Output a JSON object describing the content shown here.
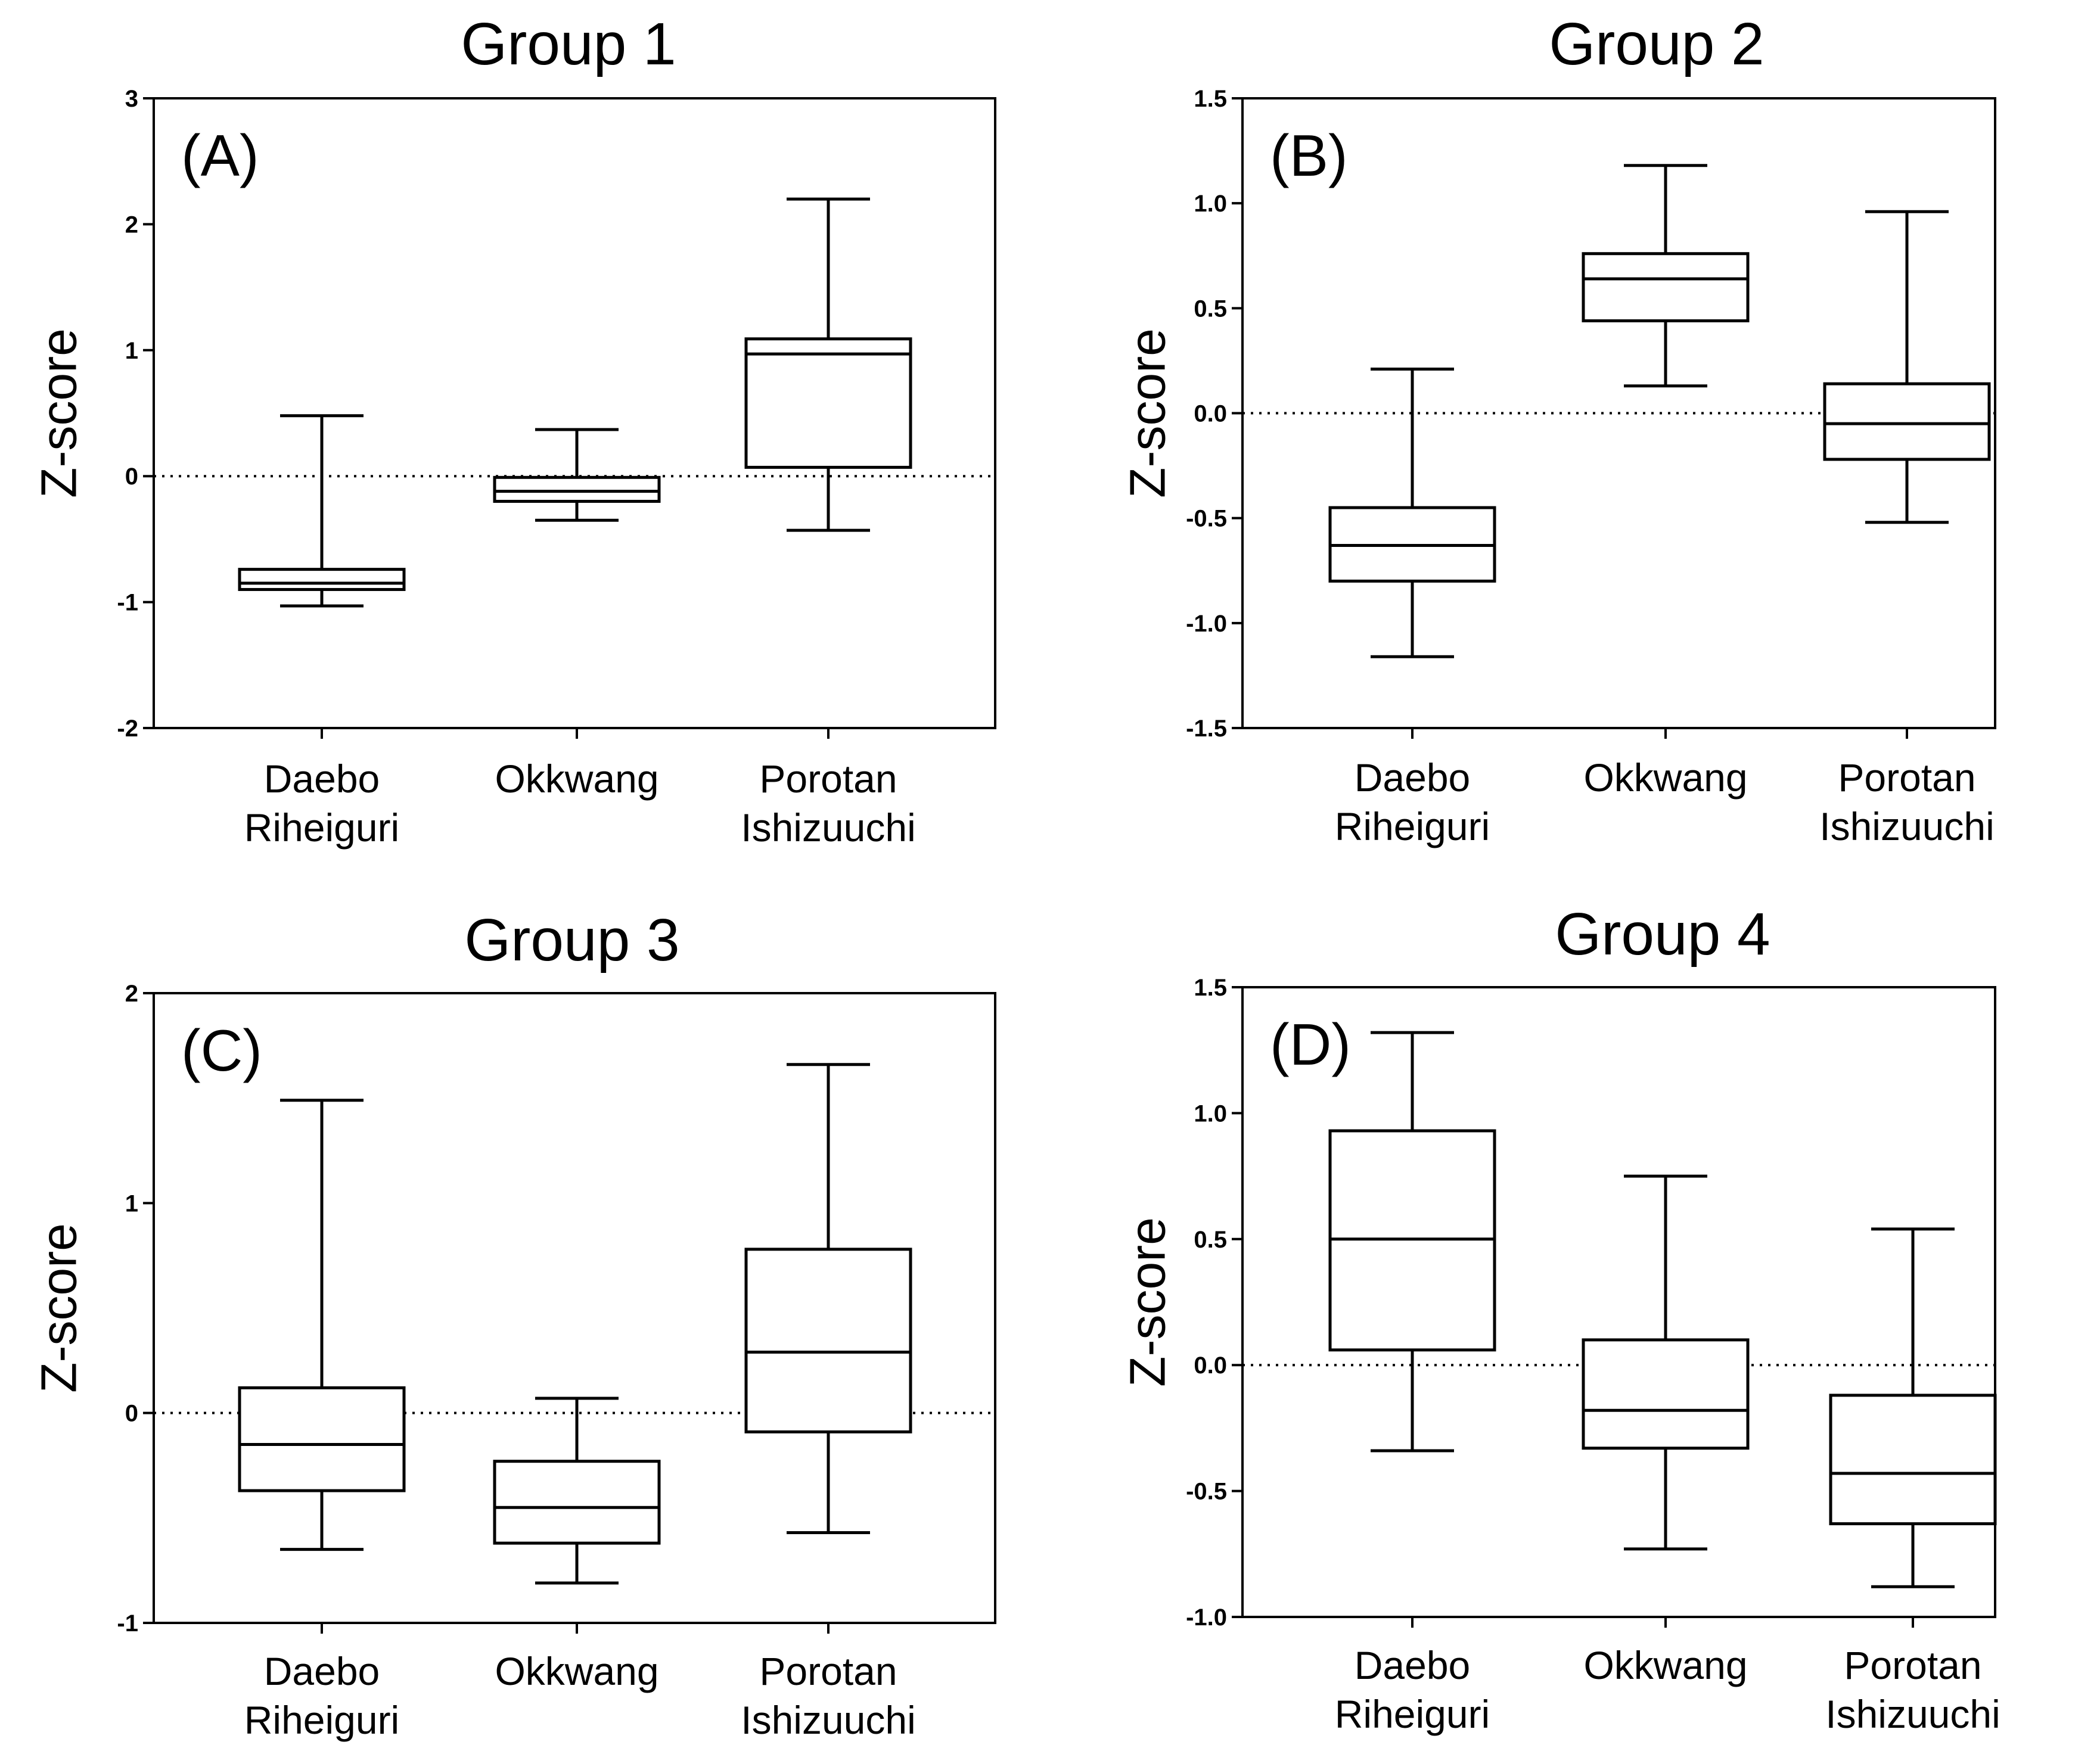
{
  "chart_data": [
    {
      "type": "box",
      "title": "Group 1",
      "panel_label": "(A)",
      "ylabel": "Z-score",
      "xlabel": "",
      "ylim": [
        -2,
        3
      ],
      "yticks": [
        -2,
        -1,
        0,
        1,
        2,
        3
      ],
      "ytick_labels": [
        "-2",
        "-1",
        "0",
        "1",
        "2",
        "3"
      ],
      "reference_line": 0,
      "categories": [
        [
          "Daebo",
          "Riheiguri"
        ],
        [
          "Okkwang"
        ],
        [
          "Porotan",
          "Ishizuuchi"
        ]
      ],
      "boxes": [
        {
          "min": -1.03,
          "q1": -0.9,
          "median": -0.85,
          "q3": -0.74,
          "max": 0.48
        },
        {
          "min": -0.35,
          "q1": -0.2,
          "median": -0.12,
          "q3": -0.01,
          "max": 0.37
        },
        {
          "min": -0.43,
          "q1": 0.07,
          "median": 0.97,
          "q3": 1.09,
          "max": 2.2
        }
      ]
    },
    {
      "type": "box",
      "title": "Group 2",
      "panel_label": "(B)",
      "ylabel": "Z-score",
      "xlabel": "",
      "ylim": [
        -1.5,
        1.5
      ],
      "yticks": [
        -1.5,
        -1.0,
        -0.5,
        0.0,
        0.5,
        1.0,
        1.5
      ],
      "ytick_labels": [
        "-1.5",
        "-1.0",
        "-0.5",
        "0.0",
        "0.5",
        "1.0",
        "1.5"
      ],
      "reference_line": 0,
      "categories": [
        [
          "Daebo",
          "Riheiguri"
        ],
        [
          "Okkwang"
        ],
        [
          "Porotan",
          "Ishizuuchi"
        ]
      ],
      "boxes": [
        {
          "min": -1.16,
          "q1": -0.8,
          "median": -0.63,
          "q3": -0.45,
          "max": 0.21
        },
        {
          "min": 0.13,
          "q1": 0.44,
          "median": 0.64,
          "q3": 0.76,
          "max": 1.18
        },
        {
          "min": -0.52,
          "q1": -0.22,
          "median": -0.05,
          "q3": 0.14,
          "max": 0.96
        }
      ]
    },
    {
      "type": "box",
      "title": "Group 3",
      "panel_label": "(C)",
      "ylabel": "Z-score",
      "xlabel": "",
      "ylim": [
        -1,
        2
      ],
      "yticks": [
        -1,
        0,
        1,
        2
      ],
      "ytick_labels": [
        "-1",
        "0",
        "1",
        "2"
      ],
      "reference_line": 0,
      "categories": [
        [
          "Daebo",
          "Riheiguri"
        ],
        [
          "Okkwang"
        ],
        [
          "Porotan",
          "Ishizuuchi"
        ]
      ],
      "boxes": [
        {
          "min": -0.65,
          "q1": -0.37,
          "median": -0.15,
          "q3": 0.12,
          "max": 1.49
        },
        {
          "min": -0.81,
          "q1": -0.62,
          "median": -0.45,
          "q3": -0.23,
          "max": 0.07
        },
        {
          "min": -0.57,
          "q1": -0.09,
          "median": 0.29,
          "q3": 0.78,
          "max": 1.66
        }
      ]
    },
    {
      "type": "box",
      "title": "Group 4",
      "panel_label": "(D)",
      "ylabel": "Z-score",
      "xlabel": "",
      "ylim": [
        -1.0,
        1.5
      ],
      "yticks": [
        -1.0,
        -0.5,
        0.0,
        0.5,
        1.0,
        1.5
      ],
      "ytick_labels": [
        "-1.0",
        "-0.5",
        "0.0",
        "0.5",
        "1.0",
        "1.5"
      ],
      "reference_line": 0,
      "categories": [
        [
          "Daebo",
          "Riheiguri"
        ],
        [
          "Okkwang"
        ],
        [
          "Porotan",
          "Ishizuuchi"
        ]
      ],
      "boxes": [
        {
          "min": -0.34,
          "q1": 0.06,
          "median": 0.5,
          "q3": 0.93,
          "max": 1.32
        },
        {
          "min": -0.73,
          "q1": -0.33,
          "median": -0.18,
          "q3": 0.1,
          "max": 0.75
        },
        {
          "min": -0.88,
          "q1": -0.63,
          "median": -0.43,
          "q3": -0.12,
          "max": 0.54
        }
      ]
    }
  ]
}
